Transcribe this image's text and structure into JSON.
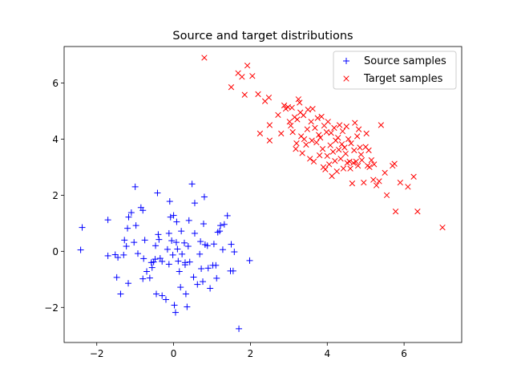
{
  "chart_data": {
    "type": "scatter",
    "title": "Source and target distributions",
    "xlabel": "",
    "ylabel": "",
    "xlim": [
      -2.85,
      7.5
    ],
    "ylim": [
      -3.25,
      7.3
    ],
    "xticks": [
      -2,
      0,
      2,
      4,
      6
    ],
    "yticks": [
      -2,
      0,
      2,
      4,
      6
    ],
    "xtick_labels": [
      "−2",
      "0",
      "2",
      "4",
      "6"
    ],
    "ytick_labels": [
      "−2",
      "0",
      "2",
      "4",
      "6"
    ],
    "grid": false,
    "legend_position": "top-right",
    "series": [
      {
        "name": "Source samples",
        "marker": "plus",
        "color": "#0000ff",
        "points": [
          [
            -2.38,
            0.85
          ],
          [
            -2.42,
            0.05
          ],
          [
            -1.71,
            1.12
          ],
          [
            -1.71,
            -0.16
          ],
          [
            -1.52,
            -0.12
          ],
          [
            -1.48,
            -0.93
          ],
          [
            -1.45,
            -0.22
          ],
          [
            -1.38,
            -1.52
          ],
          [
            -1.3,
            -0.13
          ],
          [
            -1.28,
            0.4
          ],
          [
            -1.2,
            0.82
          ],
          [
            -1.17,
            1.22
          ],
          [
            -1.23,
            0.18
          ],
          [
            -1.18,
            -1.14
          ],
          [
            -1.1,
            1.38
          ],
          [
            -1.03,
            0.32
          ],
          [
            -1.0,
            2.3
          ],
          [
            -0.98,
            0.92
          ],
          [
            -0.93,
            -0.08
          ],
          [
            -0.85,
            1.56
          ],
          [
            -0.8,
            1.46
          ],
          [
            -0.78,
            -0.26
          ],
          [
            -0.75,
            0.4
          ],
          [
            -0.8,
            -0.98
          ],
          [
            -0.7,
            -0.72
          ],
          [
            -0.62,
            -0.95
          ],
          [
            -0.58,
            -0.4
          ],
          [
            -0.52,
            -0.38
          ],
          [
            -0.56,
            -0.58
          ],
          [
            -0.48,
            -0.28
          ],
          [
            -0.47,
            0.2
          ],
          [
            -0.42,
            2.08
          ],
          [
            -0.38,
            0.42
          ],
          [
            -0.4,
            0.6
          ],
          [
            -0.35,
            -0.25
          ],
          [
            -0.3,
            -0.36
          ],
          [
            -0.3,
            -1.58
          ],
          [
            -0.45,
            -1.52
          ],
          [
            -0.2,
            -1.72
          ],
          [
            -0.16,
            0.07
          ],
          [
            -0.12,
            0.64
          ],
          [
            -0.1,
            1.78
          ],
          [
            -0.08,
            1.22
          ],
          [
            -0.12,
            -0.46
          ],
          [
            -0.05,
            0.38
          ],
          [
            -0.02,
            -0.13
          ],
          [
            0.0,
            1.28
          ],
          [
            0.02,
            -1.92
          ],
          [
            0.05,
            -2.18
          ],
          [
            0.07,
            0.32
          ],
          [
            0.08,
            1.05
          ],
          [
            0.1,
            0.08
          ],
          [
            0.12,
            -0.35
          ],
          [
            0.15,
            -0.72
          ],
          [
            0.18,
            -1.28
          ],
          [
            0.2,
            0.72
          ],
          [
            0.22,
            -0.1
          ],
          [
            0.28,
            0.3
          ],
          [
            0.3,
            -0.48
          ],
          [
            0.3,
            -0.4
          ],
          [
            0.32,
            -1.52
          ],
          [
            0.35,
            -1.98
          ],
          [
            0.38,
            0.18
          ],
          [
            0.4,
            1.1
          ],
          [
            0.42,
            -0.38
          ],
          [
            0.48,
            2.4
          ],
          [
            0.52,
            -0.92
          ],
          [
            0.55,
            1.72
          ],
          [
            0.55,
            0.64
          ],
          [
            0.62,
            -1.18
          ],
          [
            0.68,
            -0.1
          ],
          [
            0.7,
            0.35
          ],
          [
            0.72,
            -0.62
          ],
          [
            0.76,
            -1.08
          ],
          [
            0.78,
            0.98
          ],
          [
            0.8,
            1.94
          ],
          [
            0.82,
            0.24
          ],
          [
            0.88,
            0.2
          ],
          [
            0.9,
            -0.6
          ],
          [
            0.95,
            -1.32
          ],
          [
            1.02,
            -0.5
          ],
          [
            1.05,
            0.26
          ],
          [
            1.1,
            -0.5
          ],
          [
            1.12,
            -0.96
          ],
          [
            1.15,
            0.68
          ],
          [
            1.2,
            0.72
          ],
          [
            1.22,
            0.92
          ],
          [
            1.28,
            0.06
          ],
          [
            1.32,
            0.96
          ],
          [
            1.4,
            1.27
          ],
          [
            1.48,
            -0.7
          ],
          [
            1.5,
            0.25
          ],
          [
            1.55,
            -0.7
          ],
          [
            1.58,
            -0.02
          ],
          [
            1.7,
            -2.76
          ],
          [
            1.98,
            -0.33
          ]
        ]
      },
      {
        "name": "Target samples",
        "marker": "x",
        "color": "#ff0000",
        "points": [
          [
            0.8,
            6.9
          ],
          [
            1.5,
            5.85
          ],
          [
            1.68,
            6.35
          ],
          [
            1.78,
            6.22
          ],
          [
            1.85,
            5.58
          ],
          [
            1.92,
            6.62
          ],
          [
            2.05,
            6.25
          ],
          [
            2.2,
            5.6
          ],
          [
            2.25,
            4.2
          ],
          [
            2.38,
            5.35
          ],
          [
            2.48,
            5.48
          ],
          [
            2.5,
            4.5
          ],
          [
            2.5,
            3.95
          ],
          [
            2.72,
            4.86
          ],
          [
            2.8,
            4.2
          ],
          [
            2.88,
            5.2
          ],
          [
            2.92,
            5.08
          ],
          [
            2.98,
            5.14
          ],
          [
            3.02,
            4.62
          ],
          [
            3.05,
            4.48
          ],
          [
            3.08,
            5.12
          ],
          [
            3.1,
            4.25
          ],
          [
            3.15,
            4.78
          ],
          [
            3.18,
            3.65
          ],
          [
            3.2,
            3.85
          ],
          [
            3.22,
            4.7
          ],
          [
            3.25,
            5.42
          ],
          [
            3.28,
            5.3
          ],
          [
            3.3,
            4.95
          ],
          [
            3.32,
            4.1
          ],
          [
            3.35,
            3.5
          ],
          [
            3.38,
            4.85
          ],
          [
            3.4,
            4.0
          ],
          [
            3.45,
            3.8
          ],
          [
            3.48,
            4.35
          ],
          [
            3.5,
            5.05
          ],
          [
            3.55,
            3.3
          ],
          [
            3.58,
            4.62
          ],
          [
            3.6,
            3.95
          ],
          [
            3.62,
            5.08
          ],
          [
            3.65,
            3.2
          ],
          [
            3.68,
            4.4
          ],
          [
            3.72,
            3.88
          ],
          [
            3.75,
            4.75
          ],
          [
            3.78,
            4.15
          ],
          [
            3.8,
            3.42
          ],
          [
            3.82,
            4.05
          ],
          [
            3.85,
            4.8
          ],
          [
            3.88,
            3.65
          ],
          [
            3.9,
            3.0
          ],
          [
            3.92,
            4.48
          ],
          [
            3.95,
            2.92
          ],
          [
            3.98,
            4.25
          ],
          [
            4.0,
            3.4
          ],
          [
            4.02,
            4.62
          ],
          [
            4.05,
            3.1
          ],
          [
            4.08,
            3.78
          ],
          [
            4.1,
            4.22
          ],
          [
            4.12,
            2.68
          ],
          [
            4.15,
            3.55
          ],
          [
            4.18,
            4.4
          ],
          [
            4.2,
            3.22
          ],
          [
            4.22,
            3.95
          ],
          [
            4.25,
            2.85
          ],
          [
            4.28,
            4.05
          ],
          [
            4.3,
            3.62
          ],
          [
            4.32,
            4.5
          ],
          [
            4.35,
            3.3
          ],
          [
            4.38,
            3.82
          ],
          [
            4.4,
            4.28
          ],
          [
            4.42,
            2.95
          ],
          [
            4.45,
            3.7
          ],
          [
            4.48,
            3.48
          ],
          [
            4.5,
            4.45
          ],
          [
            4.52,
            3.15
          ],
          [
            4.55,
            4.0
          ],
          [
            4.58,
            3.2
          ],
          [
            4.6,
            2.95
          ],
          [
            4.62,
            3.85
          ],
          [
            4.65,
            2.42
          ],
          [
            4.68,
            3.15
          ],
          [
            4.7,
            3.6
          ],
          [
            4.72,
            4.58
          ],
          [
            4.75,
            3.2
          ],
          [
            4.78,
            4.1
          ],
          [
            4.8,
            3.05
          ],
          [
            4.82,
            4.35
          ],
          [
            4.85,
            3.7
          ],
          [
            4.88,
            3.45
          ],
          [
            4.9,
            3.25
          ],
          [
            4.95,
            2.45
          ],
          [
            5.0,
            3.72
          ],
          [
            5.02,
            4.2
          ],
          [
            5.05,
            3.05
          ],
          [
            5.08,
            3.6
          ],
          [
            5.1,
            3.0
          ],
          [
            5.15,
            3.25
          ],
          [
            5.2,
            2.55
          ],
          [
            5.22,
            3.1
          ],
          [
            5.28,
            2.35
          ],
          [
            5.35,
            2.5
          ],
          [
            5.4,
            4.5
          ],
          [
            5.5,
            2.8
          ],
          [
            5.55,
            2.0
          ],
          [
            5.7,
            3.05
          ],
          [
            5.75,
            3.12
          ],
          [
            5.78,
            1.42
          ],
          [
            5.9,
            2.45
          ],
          [
            6.1,
            2.3
          ],
          [
            6.25,
            2.66
          ],
          [
            6.35,
            1.42
          ],
          [
            7.0,
            0.85
          ]
        ]
      }
    ]
  }
}
